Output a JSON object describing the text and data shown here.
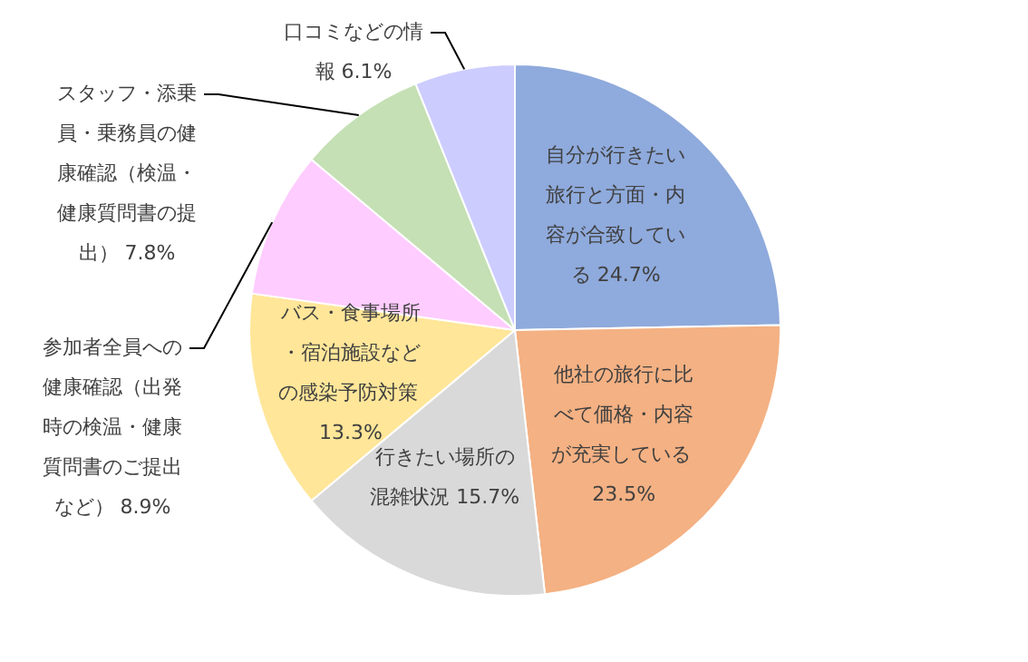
{
  "chart_data": {
    "type": "pie",
    "categories": [
      "自分が行きたい旅行と方面・内容が合致している",
      "他社の旅行に比べて価格・内容が充実している",
      "行きたい場所の混雑状況",
      "バス・食事場所・宿泊施設などの感染予防対策",
      "参加者全員への健康確認（出発時の検温・健康質問書のご提出など）",
      "スタッフ・添乗員・乗務員の健康確認（検温・健康質問書の提出）",
      "口コミなどの情報"
    ],
    "values": [
      24.7,
      23.5,
      15.7,
      13.3,
      8.9,
      7.8,
      6.1
    ],
    "colors": [
      "#8faadc",
      "#f4b183",
      "#d9d9d9",
      "#ffe699",
      "#ffccff",
      "#c5e0b4",
      "#ccccff"
    ],
    "value_labels": [
      "24.7%",
      "23.5%",
      "15.7%",
      "13.3%",
      "8.9%",
      "7.8%",
      "6.1%"
    ],
    "legend": false
  }
}
